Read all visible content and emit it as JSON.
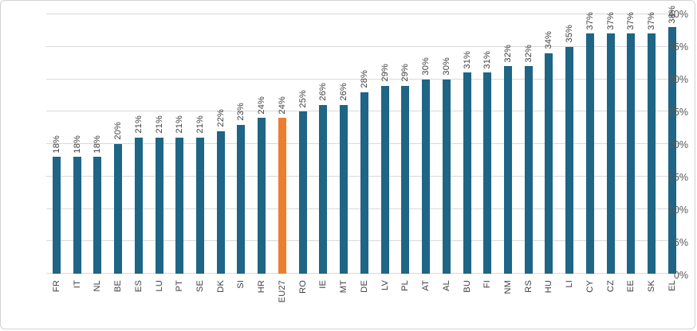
{
  "chart": {
    "bar_color": "#1f6585",
    "highlight_color": "#ed7d31",
    "grid_color": "#d9d9d9",
    "tick_text_color": "#595959",
    "label_text_color": "#404040",
    "frame_border_color": "#d2d2d2",
    "background_color": "#ffffff"
  },
  "chart_data": {
    "type": "bar",
    "title": "",
    "xlabel": "",
    "ylabel": "",
    "categories": [
      "FR",
      "IT",
      "NL",
      "BE",
      "ES",
      "LU",
      "PT",
      "SE",
      "DK",
      "SI",
      "HR",
      "EU27",
      "RO",
      "IE",
      "MT",
      "DE",
      "LV",
      "PL",
      "AT",
      "AL",
      "BU",
      "FI",
      "NM",
      "RS",
      "HU",
      "LI",
      "CY",
      "CZ",
      "EE",
      "SK",
      "EL"
    ],
    "values": [
      18,
      18,
      18,
      20,
      21,
      21,
      21,
      21,
      22,
      23,
      24,
      24,
      25,
      26,
      26,
      28,
      29,
      29,
      30,
      30,
      31,
      31,
      32,
      32,
      34,
      35,
      37,
      37,
      37,
      37,
      38
    ],
    "data_labels": [
      "18%",
      "18%",
      "18%",
      "20%",
      "21%",
      "21%",
      "21%",
      "21%",
      "22%",
      "23%",
      "24%",
      "24%",
      "25%",
      "26%",
      "26%",
      "28%",
      "29%",
      "29%",
      "30%",
      "30%",
      "31%",
      "31%",
      "32%",
      "32%",
      "34%",
      "35%",
      "37%",
      "37%",
      "37%",
      "37%",
      "38%"
    ],
    "highlight_category": "EU27",
    "ylim": [
      0,
      40
    ],
    "ytick_step": 5,
    "yticks": [
      "0%",
      "5%",
      "10%",
      "15%",
      "20%",
      "25%",
      "30%",
      "35%",
      "40%"
    ],
    "grid": true,
    "legend": false
  }
}
